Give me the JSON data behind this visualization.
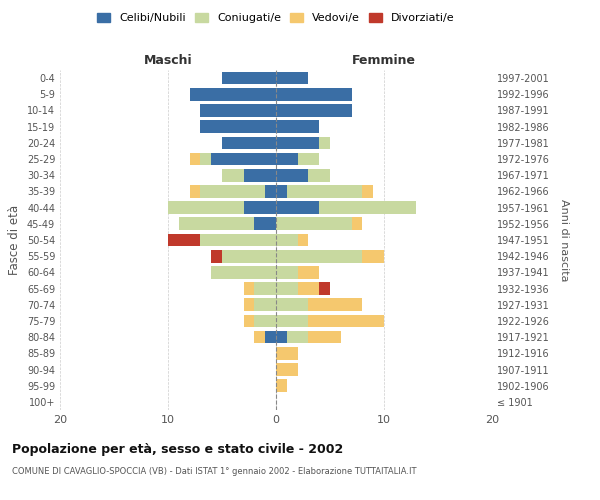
{
  "age_groups": [
    "100+",
    "95-99",
    "90-94",
    "85-89",
    "80-84",
    "75-79",
    "70-74",
    "65-69",
    "60-64",
    "55-59",
    "50-54",
    "45-49",
    "40-44",
    "35-39",
    "30-34",
    "25-29",
    "20-24",
    "15-19",
    "10-14",
    "5-9",
    "0-4"
  ],
  "birth_years": [
    "≤ 1901",
    "1902-1906",
    "1907-1911",
    "1912-1916",
    "1917-1921",
    "1922-1926",
    "1927-1931",
    "1932-1936",
    "1937-1941",
    "1942-1946",
    "1947-1951",
    "1952-1956",
    "1957-1961",
    "1962-1966",
    "1967-1971",
    "1972-1976",
    "1977-1981",
    "1982-1986",
    "1987-1991",
    "1992-1996",
    "1997-2001"
  ],
  "maschi": {
    "celibi": [
      0,
      0,
      0,
      0,
      1,
      0,
      0,
      0,
      0,
      0,
      0,
      2,
      3,
      1,
      3,
      6,
      5,
      7,
      7,
      8,
      5
    ],
    "coniugati": [
      0,
      0,
      0,
      0,
      0,
      2,
      2,
      2,
      6,
      5,
      7,
      7,
      7,
      6,
      2,
      1,
      0,
      0,
      0,
      0,
      0
    ],
    "vedovi": [
      0,
      0,
      0,
      0,
      1,
      1,
      1,
      1,
      0,
      0,
      0,
      0,
      0,
      1,
      0,
      1,
      0,
      0,
      0,
      0,
      0
    ],
    "divorziati": [
      0,
      0,
      0,
      0,
      0,
      0,
      0,
      0,
      0,
      1,
      3,
      0,
      0,
      0,
      0,
      0,
      0,
      0,
      0,
      0,
      0
    ]
  },
  "femmine": {
    "nubili": [
      0,
      0,
      0,
      0,
      1,
      0,
      0,
      0,
      0,
      0,
      0,
      0,
      4,
      1,
      3,
      2,
      4,
      4,
      7,
      7,
      3
    ],
    "coniugate": [
      0,
      0,
      0,
      0,
      2,
      3,
      3,
      2,
      2,
      8,
      2,
      7,
      9,
      7,
      2,
      2,
      1,
      0,
      0,
      0,
      0
    ],
    "vedove": [
      0,
      1,
      2,
      2,
      3,
      7,
      5,
      2,
      2,
      2,
      1,
      1,
      0,
      1,
      0,
      0,
      0,
      0,
      0,
      0,
      0
    ],
    "divorziate": [
      0,
      0,
      0,
      0,
      0,
      0,
      0,
      1,
      0,
      0,
      0,
      0,
      0,
      0,
      0,
      0,
      0,
      0,
      0,
      0,
      0
    ]
  },
  "colors": {
    "celibi_nubili": "#3a6ea5",
    "coniugati": "#c8d9a0",
    "vedovi": "#f5c86e",
    "divorziati": "#c0392b"
  },
  "xlim": 20,
  "title": "Popolazione per età, sesso e stato civile - 2002",
  "subtitle": "COMUNE DI CAVAGLIO-SPOCCIA (VB) - Dati ISTAT 1° gennaio 2002 - Elaborazione TUTTAITALIA.IT",
  "ylabel_left": "Fasce di età",
  "ylabel_right": "Anni di nascita",
  "xlabel_maschi": "Maschi",
  "xlabel_femmine": "Femmine"
}
